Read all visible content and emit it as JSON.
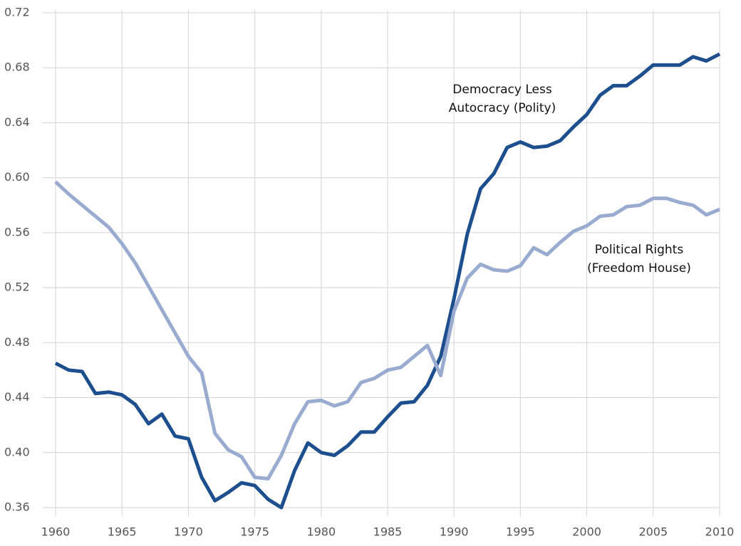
{
  "chart_data": {
    "type": "line",
    "x": [
      1960,
      1961,
      1962,
      1963,
      1964,
      1965,
      1966,
      1967,
      1968,
      1969,
      1970,
      1971,
      1972,
      1973,
      1974,
      1975,
      1976,
      1977,
      1978,
      1979,
      1980,
      1981,
      1982,
      1983,
      1984,
      1985,
      1986,
      1987,
      1988,
      1989,
      1990,
      1991,
      1992,
      1993,
      1994,
      1995,
      1996,
      1997,
      1998,
      1999,
      2000,
      2001,
      2002,
      2003,
      2004,
      2005,
      2006,
      2007,
      2008,
      2009,
      2010
    ],
    "series": [
      {
        "name": "Democracy Less Autocracy (Polity)",
        "color": "#1d4f8f",
        "values": [
          0.465,
          0.46,
          0.459,
          0.443,
          0.444,
          0.442,
          0.435,
          0.421,
          0.428,
          0.412,
          0.41,
          0.382,
          0.365,
          0.371,
          0.378,
          0.376,
          0.366,
          0.36,
          0.387,
          0.407,
          0.4,
          0.398,
          0.405,
          0.415,
          0.415,
          0.426,
          0.436,
          0.437,
          0.449,
          0.47,
          0.512,
          0.559,
          0.592,
          0.603,
          0.622,
          0.626,
          0.622,
          0.623,
          0.627,
          0.637,
          0.646,
          0.66,
          0.667,
          0.667,
          0.674,
          0.682,
          0.682,
          0.682,
          0.688,
          0.685,
          0.69
        ]
      },
      {
        "name": "Political Rights (Freedom House)",
        "color": "#9aabd0",
        "values": [
          0.597,
          0.588,
          0.58,
          0.572,
          0.564,
          0.552,
          0.538,
          0.521,
          0.504,
          0.487,
          0.47,
          0.458,
          0.414,
          0.402,
          0.397,
          0.382,
          0.381,
          0.398,
          0.421,
          0.437,
          0.438,
          0.434,
          0.437,
          0.451,
          0.454,
          0.46,
          0.462,
          0.47,
          0.478,
          0.456,
          0.503,
          0.527,
          0.537,
          0.533,
          0.532,
          0.536,
          0.549,
          0.544,
          0.553,
          0.561,
          0.565,
          0.572,
          0.573,
          0.579,
          0.58,
          0.585,
          0.585,
          0.582,
          0.58,
          0.573,
          0.577
        ]
      }
    ],
    "xlim": [
      1960,
      2010
    ],
    "xticks": [
      1960,
      1965,
      1970,
      1975,
      1980,
      1985,
      1990,
      1995,
      2000,
      2005,
      2010
    ],
    "ylim": [
      0.36,
      0.72
    ],
    "yticks": [
      0.36,
      {
        "value": 0.4,
        "label": "0.40"
      },
      0.44,
      0.48,
      0.52,
      0.56,
      {
        "value": 0.6,
        "label": "0.60"
      },
      0.64,
      0.68,
      0.72
    ],
    "grid": true
  }
}
